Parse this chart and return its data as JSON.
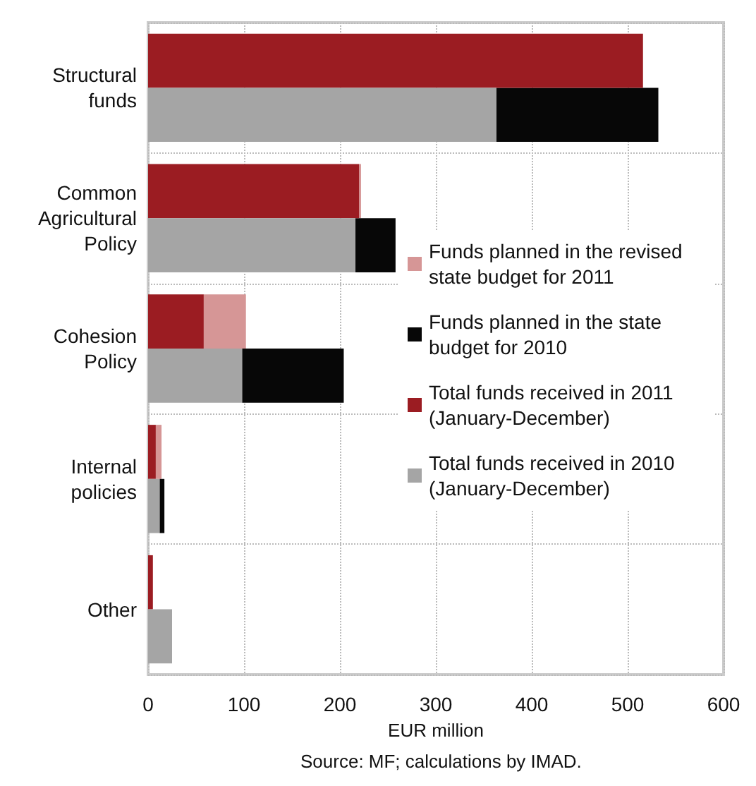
{
  "chart_data": {
    "type": "bar",
    "orientation": "horizontal",
    "xlabel": "EUR million",
    "annotations": [
      "Source: MF; calculations by IMAD."
    ],
    "categories": [
      "Structural\nfunds",
      "Common\nAgricultural\nPolicy",
      "Cohesion\nPolicy",
      "Internal\npolicies",
      "Other"
    ],
    "series": [
      {
        "name": "Funds planned in the revised state budget for 2011",
        "color": "#d69696",
        "values": [
          null,
          2,
          44,
          6,
          null
        ],
        "base": [
          null,
          220,
          58,
          8,
          null
        ]
      },
      {
        "name": "Funds planned in the state budget for 2010",
        "color": "#070707",
        "values": [
          169,
          42,
          106,
          5,
          null
        ],
        "base": [
          363,
          216,
          98,
          12,
          null
        ]
      },
      {
        "name": "Total funds received in 2011 (January-December)",
        "color": "#9b1c22",
        "values": [
          516,
          220,
          58,
          8,
          5
        ]
      },
      {
        "name": "Total funds received in 2010 (January-December)",
        "color": "#a5a5a5",
        "values": [
          363,
          216,
          98,
          12,
          25
        ]
      }
    ],
    "xlim": [
      0,
      600
    ],
    "xticks": [
      0,
      100,
      200,
      300,
      400,
      500,
      600
    ],
    "grid": true,
    "legend": "right"
  }
}
